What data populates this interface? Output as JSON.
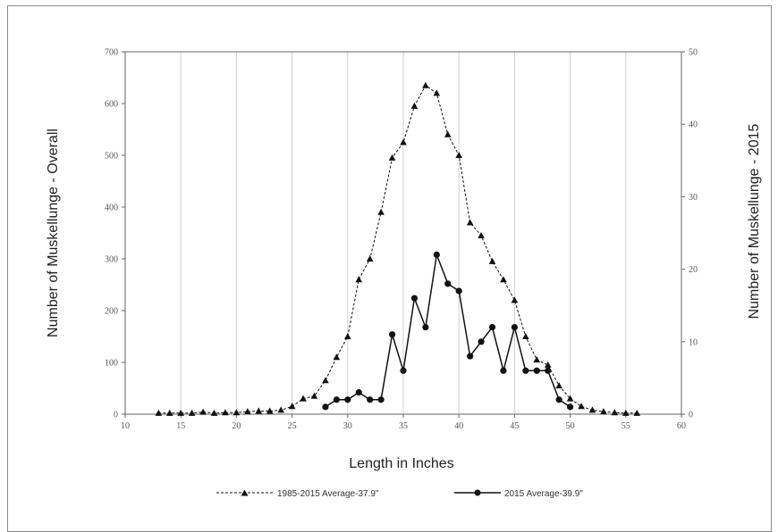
{
  "chart_data": {
    "type": "line",
    "xlabel": "Length in Inches",
    "ylabel": "Number of Muskellunge - Overall",
    "y2label": "Number of Muskellunge - 2015",
    "xlim": [
      10,
      60
    ],
    "ylim": [
      0,
      700
    ],
    "y2lim": [
      0,
      50
    ],
    "x_ticks": [
      "10",
      "15",
      "20",
      "25",
      "30",
      "35",
      "40",
      "45",
      "50",
      "55",
      "60"
    ],
    "y_ticks": [
      "0",
      "100",
      "200",
      "300",
      "400",
      "500",
      "600",
      "700"
    ],
    "y2_ticks": [
      "0",
      "10",
      "20",
      "30",
      "40",
      "50"
    ],
    "grid": "vertical",
    "legend_position": "bottom",
    "series": [
      {
        "name": "1985-2015 Average-37.9\"",
        "axis": "left",
        "style": "dashed",
        "marker": "triangle",
        "color": "#111111",
        "x": [
          13,
          14,
          15,
          16,
          17,
          18,
          19,
          20,
          21,
          22,
          23,
          24,
          25,
          26,
          27,
          28,
          29,
          30,
          31,
          32,
          33,
          34,
          35,
          36,
          37,
          38,
          39,
          40,
          41,
          42,
          43,
          44,
          45,
          46,
          47,
          48,
          49,
          50,
          51,
          52,
          53,
          54,
          55,
          56
        ],
        "y": [
          2,
          2,
          2,
          2,
          4,
          2,
          3,
          3,
          5,
          6,
          6,
          8,
          15,
          30,
          35,
          65,
          110,
          150,
          260,
          300,
          390,
          495,
          525,
          595,
          635,
          620,
          540,
          500,
          370,
          345,
          295,
          260,
          220,
          150,
          105,
          95,
          55,
          30,
          15,
          8,
          5,
          3,
          2,
          2
        ]
      },
      {
        "name": "2015 Average-39.9\"",
        "axis": "right",
        "style": "solid",
        "marker": "circle",
        "color": "#111111",
        "x": [
          28,
          29,
          30,
          31,
          32,
          33,
          34,
          35,
          36,
          37,
          38,
          39,
          40,
          41,
          42,
          43,
          44,
          45,
          46,
          47,
          48,
          49,
          50
        ],
        "y": [
          1,
          2,
          2,
          3,
          2,
          2,
          11,
          6,
          16,
          12,
          22,
          18,
          17,
          8,
          10,
          12,
          6,
          12,
          6,
          6,
          6,
          2,
          1
        ]
      }
    ]
  }
}
